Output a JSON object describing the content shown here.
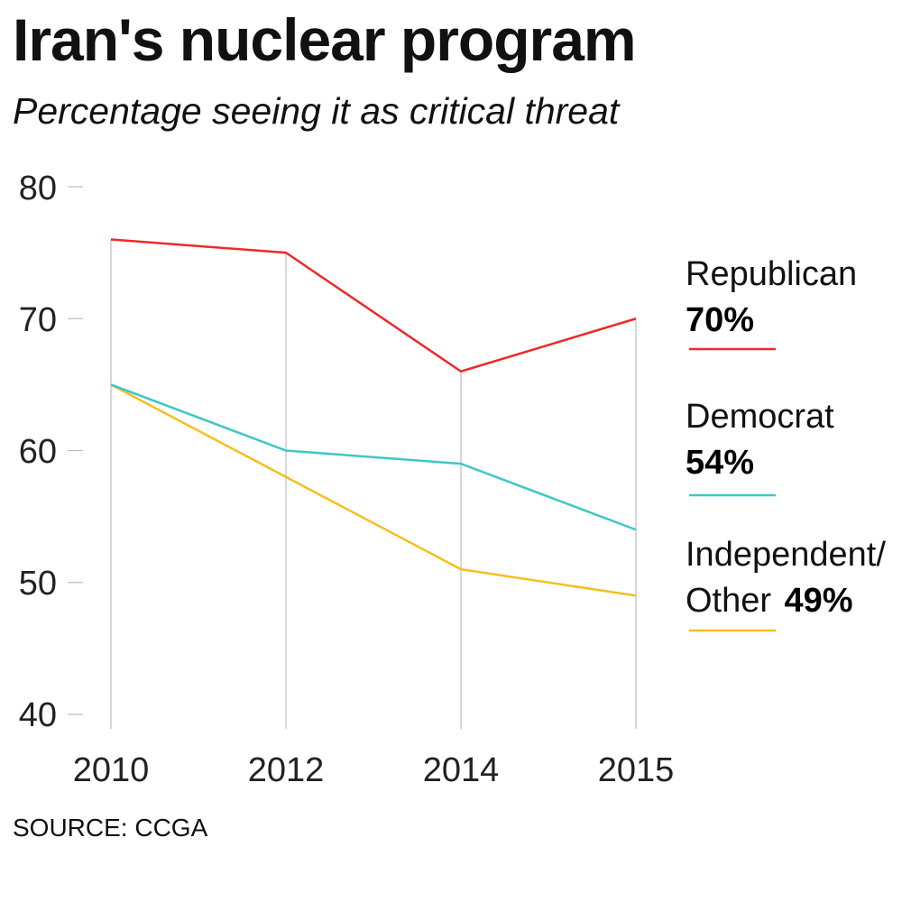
{
  "chart_data": {
    "type": "line",
    "title": "Iran's nuclear program",
    "subtitle": "Percentage seeing it as critical threat",
    "x": [
      "2010",
      "2012",
      "2014",
      "2015"
    ],
    "ylim": [
      40,
      80
    ],
    "yticks": [
      "80",
      "70",
      "60",
      "50",
      "40"
    ],
    "grid": "vertical",
    "legend_placement": "right",
    "series": [
      {
        "name": "Republican",
        "value_label": "70%",
        "color": "#f02828",
        "values": [
          76,
          75,
          66,
          70
        ]
      },
      {
        "name": "Democrat",
        "value_label": "54%",
        "color": "#3fc7c4",
        "values": [
          65,
          60,
          59,
          54
        ]
      },
      {
        "name_line1": "Independent/",
        "name_line2": "Other",
        "value_label": "49%",
        "color": "#f5bf1f",
        "values": [
          65,
          58,
          51,
          49
        ]
      }
    ],
    "source": "SOURCE: CCGA"
  }
}
